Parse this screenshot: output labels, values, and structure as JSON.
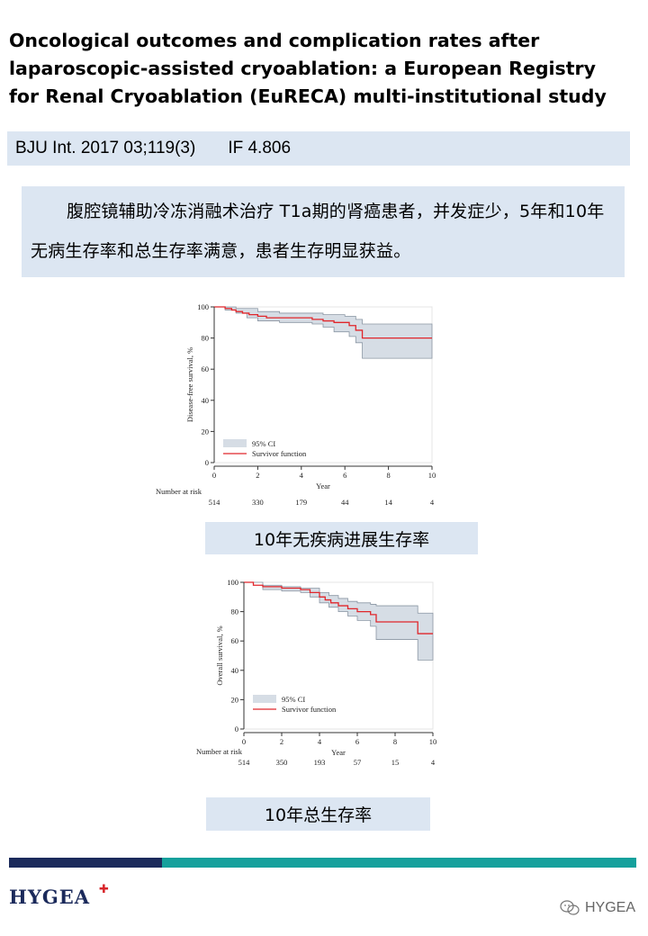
{
  "title": "Oncological outcomes and complication rates after laparoscopic-assisted cryoablation: a European Registry for Renal Cryoablation (EuRECA) multi-institutional study",
  "citation": {
    "journal": "BJU Int. 2017 03;119(3)",
    "impact": "IF 4.806"
  },
  "summary": "腹腔镜辅助冷冻消融术治疗 T1a期的肾癌患者，并发症少，5年和10年无病生存率和总生存率满意，患者生存明显获益。",
  "captions": {
    "chart1": "10年无疾病进展生存率",
    "chart2": "10年总生存率"
  },
  "footer": {
    "logo": "HYGEA",
    "watermark": "HYGEA"
  },
  "colors": {
    "ci": "#d6dde5",
    "ci_edge": "#8a96a3",
    "line": "#e0262b",
    "accent_dark": "#1b2a5b",
    "accent_teal": "#14a09c",
    "panel": "#dce6f2"
  },
  "chart_data": [
    {
      "type": "line",
      "ylabel": "Disease-free survival, %",
      "xlabel": "Year",
      "xlim": [
        0,
        10
      ],
      "ylim": [
        0,
        100
      ],
      "x_ticks": [
        0,
        2,
        4,
        6,
        8,
        10
      ],
      "y_ticks": [
        0,
        20,
        40,
        60,
        80,
        100
      ],
      "legend": {
        "position": "bottom-left",
        "entries": [
          "95% CI",
          "Survivor function"
        ]
      },
      "risk_label": "Number at risk",
      "risk_x": [
        0,
        2,
        4,
        6,
        8,
        10
      ],
      "risk_values": [
        "514",
        "330",
        "179",
        "44",
        "14",
        "4"
      ],
      "series": [
        {
          "name": "Survivor function",
          "x": [
            0,
            0.5,
            0.8,
            1.0,
            1.3,
            1.6,
            2.0,
            2.4,
            3.0,
            4.0,
            4.5,
            5.0,
            5.5,
            6.2,
            6.5,
            6.8,
            10
          ],
          "y": [
            100,
            99,
            98,
            97,
            96,
            95,
            94,
            93,
            93,
            93,
            92,
            91,
            90,
            88,
            85,
            80,
            80
          ]
        },
        {
          "name": "95% CI upper",
          "x": [
            0,
            0.5,
            1.0,
            2.0,
            3.0,
            4.0,
            5.0,
            6.0,
            6.5,
            6.8,
            10
          ],
          "y": [
            100,
            100,
            99,
            97,
            96,
            96,
            95,
            94,
            92,
            89,
            89
          ]
        },
        {
          "name": "95% CI lower",
          "x": [
            0,
            0.5,
            1.0,
            1.5,
            2.0,
            3.0,
            4.0,
            4.5,
            5.0,
            5.5,
            6.2,
            6.5,
            6.8,
            10
          ],
          "y": [
            100,
            98,
            96,
            93,
            91,
            90,
            90,
            89,
            87,
            84,
            81,
            77,
            67,
            67
          ]
        }
      ]
    },
    {
      "type": "line",
      "ylabel": "Overall survival, %",
      "xlabel": "Year",
      "xlim": [
        0,
        10
      ],
      "ylim": [
        0,
        100
      ],
      "x_ticks": [
        0,
        2,
        4,
        6,
        8,
        10
      ],
      "y_ticks": [
        0,
        20,
        40,
        60,
        80,
        100
      ],
      "legend": {
        "position": "bottom-left",
        "entries": [
          "95% CI",
          "Survivor function"
        ]
      },
      "risk_label": "Number at risk",
      "risk_x": [
        0,
        2,
        4,
        6,
        8,
        10
      ],
      "risk_values": [
        "514",
        "350",
        "193",
        "57",
        "15",
        "4"
      ],
      "series": [
        {
          "name": "Survivor function",
          "x": [
            0,
            0.5,
            1.0,
            2.0,
            3.0,
            3.5,
            4.0,
            4.3,
            4.6,
            5.0,
            5.5,
            6.0,
            6.7,
            7.0,
            9.2,
            10
          ],
          "y": [
            100,
            98,
            97,
            96,
            95,
            93,
            90,
            88,
            86,
            84,
            82,
            80,
            78,
            73,
            65,
            65
          ]
        },
        {
          "name": "95% CI upper",
          "x": [
            0,
            1.0,
            2.0,
            3.0,
            4.0,
            4.5,
            5.0,
            5.5,
            6.0,
            6.7,
            7.0,
            9.2,
            10
          ],
          "y": [
            100,
            98,
            97,
            96,
            93,
            91,
            89,
            87,
            86,
            85,
            84,
            79,
            79
          ]
        },
        {
          "name": "95% CI lower",
          "x": [
            0,
            1.0,
            2.0,
            3.0,
            3.5,
            4.0,
            4.5,
            5.0,
            5.5,
            6.0,
            6.7,
            7.0,
            9.2,
            10
          ],
          "y": [
            100,
            95,
            94,
            93,
            90,
            86,
            83,
            80,
            77,
            74,
            70,
            61,
            47,
            47
          ]
        }
      ]
    }
  ]
}
